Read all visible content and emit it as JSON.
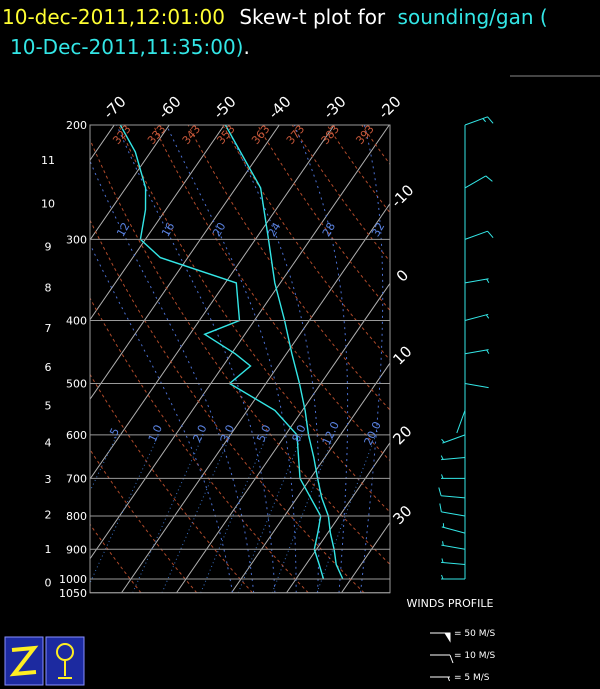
{
  "header": {
    "time": "10-dec-2011,12:01:00",
    "text": "Skew-t plot for",
    "station": "sounding/gan (",
    "obs_time": "10-Dec-2011,11:35:00)",
    "end": "."
  },
  "chart_data": {
    "type": "skew-t",
    "pressure_ticks": [
      200,
      300,
      400,
      500,
      600,
      700,
      800,
      900,
      1000,
      1050
    ],
    "height_ticks": [
      0,
      1,
      2,
      3,
      4,
      5,
      6,
      7,
      8,
      9,
      10,
      11
    ],
    "temperature_ticks": [
      -70,
      -60,
      -50,
      -40,
      -30,
      -20,
      -10,
      0,
      10,
      20,
      30
    ],
    "dry_adiabats": [
      254,
      263,
      273,
      283,
      293,
      303,
      313,
      323,
      333,
      343,
      353,
      363,
      373,
      383,
      393
    ],
    "moist_adiabats": [
      8,
      12,
      16,
      20,
      24,
      28,
      32
    ],
    "mixing_ratios": [
      {
        "value": 0.5,
        "label": ".5"
      },
      {
        "value": 1,
        "label": "1.0"
      },
      {
        "value": 2,
        "label": "2.0"
      },
      {
        "value": 3,
        "label": "3.0"
      },
      {
        "value": 5,
        "label": "5.0"
      },
      {
        "value": 8,
        "label": "8.0"
      },
      {
        "value": 12,
        "label": "12.0"
      },
      {
        "value": 20,
        "label": "20.0"
      }
    ],
    "profiles": [
      {
        "color": "#33e6e6",
        "pressure": [
          1000,
          950,
          900,
          850,
          800,
          750,
          700,
          650,
          600,
          550,
          500,
          450,
          400,
          350,
          300,
          250,
          200
        ],
        "values": [
          28.5,
          25.5,
          23.2,
          20.5,
          18,
          14.5,
          11.3,
          8,
          4.2,
          0.5,
          -3.9,
          -9,
          -14.5,
          -21,
          -27.6,
          -35.5,
          -49.8
        ]
      },
      {
        "color": "#33e6e6",
        "pressure": [
          1000,
          950,
          900,
          850,
          800,
          700,
          600,
          550,
          500,
          470,
          450,
          420,
          400,
          350,
          320,
          300,
          270,
          250,
          220,
          200
        ],
        "values": [
          25,
          22.4,
          19.6,
          18.2,
          16.6,
          8.1,
          2.1,
          -5,
          -16.6,
          -15,
          -19.3,
          -27.3,
          -22.7,
          -28,
          -45,
          -50.9,
          -53.7,
          -56.4,
          -62.8,
          -68.9
        ]
      }
    ],
    "winds": {
      "pressure": [
        1000,
        950,
        900,
        850,
        800,
        750,
        700,
        650,
        600,
        550,
        500,
        450,
        400,
        350,
        300,
        250,
        200
      ],
      "speed": [
        6,
        7,
        8,
        9,
        10,
        10,
        9,
        8,
        5,
        3,
        4,
        6,
        7,
        8,
        10,
        12,
        15
      ],
      "direction": [
        270,
        275,
        280,
        285,
        280,
        275,
        270,
        265,
        250,
        200,
        100,
        80,
        75,
        80,
        70,
        60,
        70
      ]
    },
    "winds_title": "WINDS PROFILE",
    "winds_legend": [
      {
        "value": 50,
        "label": "= 50 M/S"
      },
      {
        "value": 10,
        "label": "= 10 M/S"
      },
      {
        "value": 5,
        "label": "= 5 M/S"
      }
    ]
  }
}
